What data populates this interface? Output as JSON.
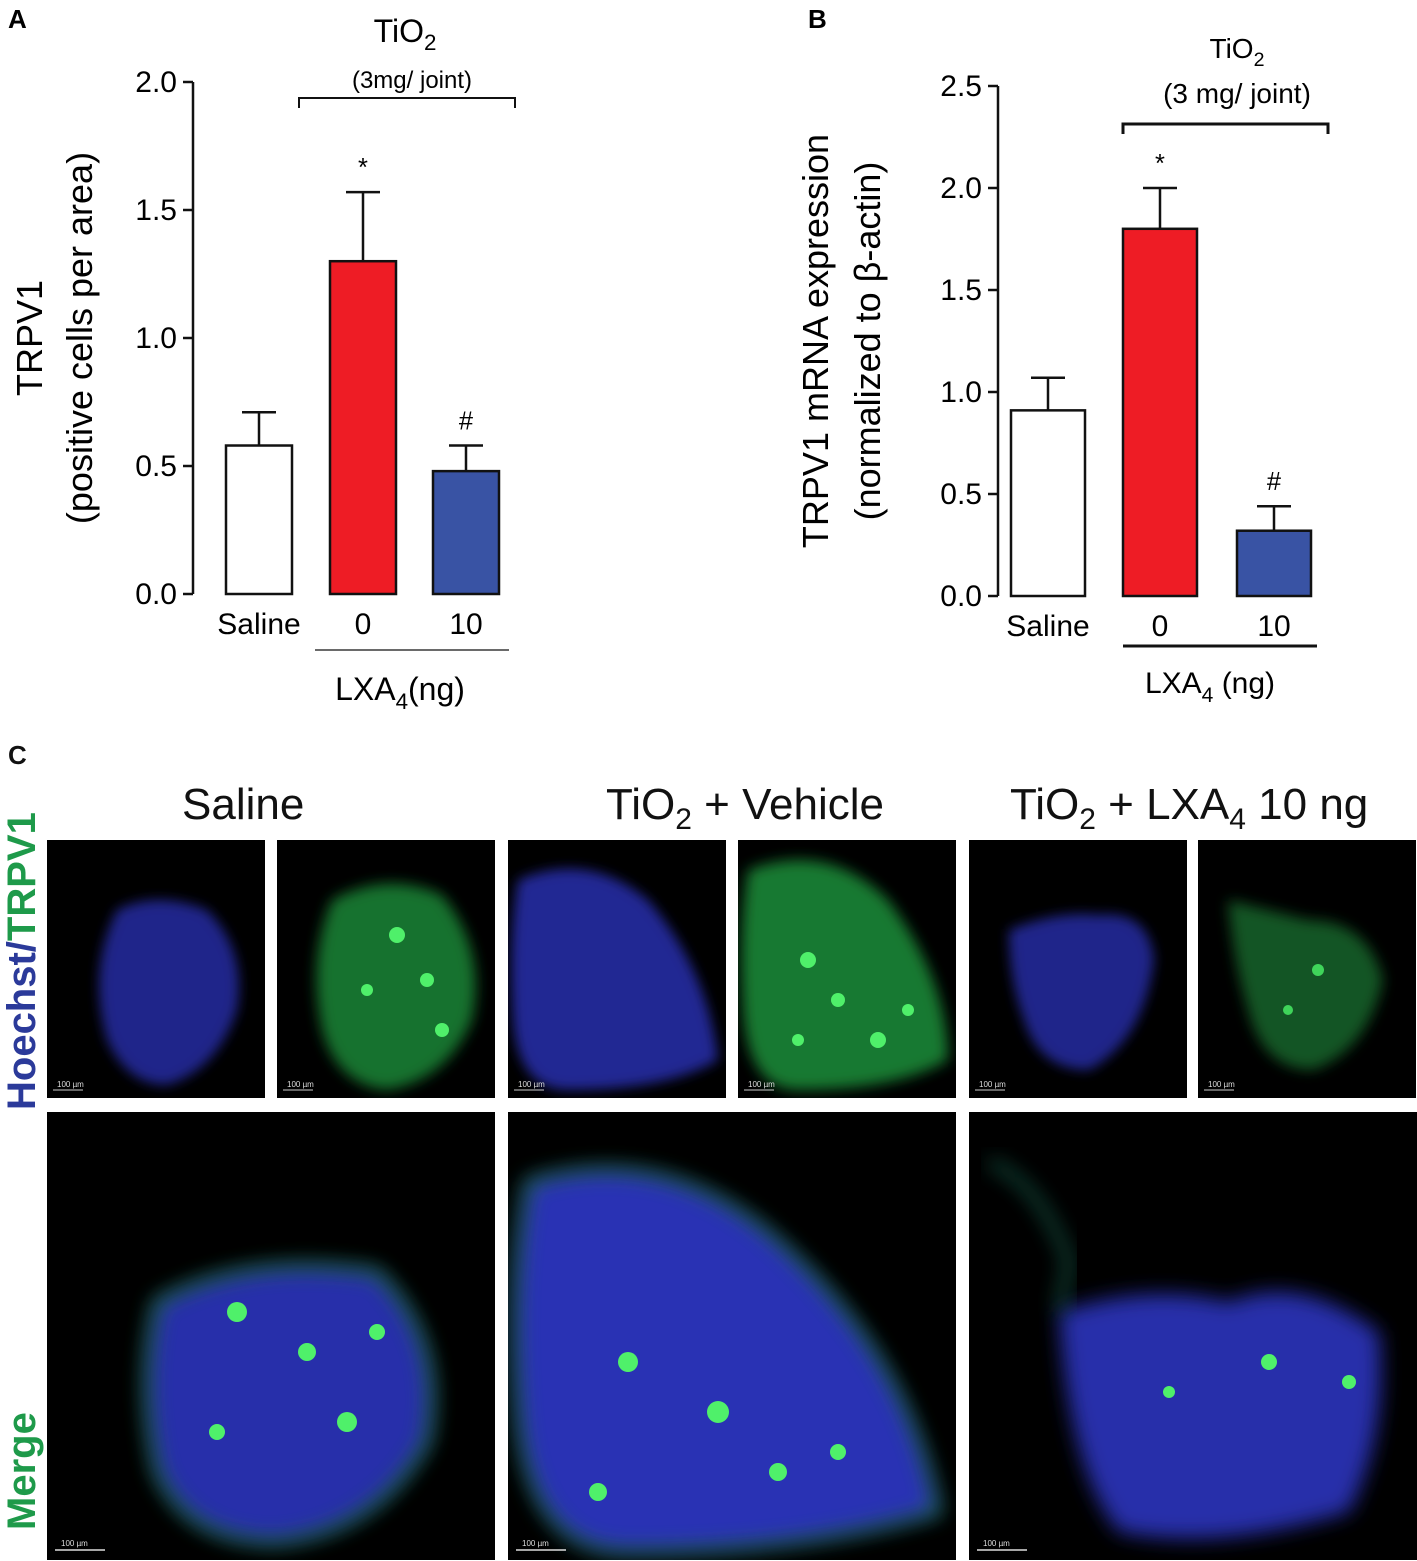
{
  "chart_data": [
    {
      "panel": "A",
      "type": "bar",
      "title": "",
      "ylabel": [
        "TRPV1",
        "(positive cells per area)"
      ],
      "ylim": [
        0,
        2.0
      ],
      "yticks": [
        "0.0",
        "0.5",
        "1.0",
        "1.5",
        "2.0"
      ],
      "categories": [
        "Saline",
        "0",
        "10"
      ],
      "values": [
        0.58,
        1.3,
        0.48
      ],
      "errors": [
        0.13,
        0.27,
        0.1
      ],
      "colors": [
        "#ffffff",
        "#ee1c25",
        "#3953a4"
      ],
      "significance": [
        "",
        "*",
        "#"
      ],
      "bracket_top_label": "TiO",
      "bracket_top_sub": "2",
      "bracket_dose": "(3mg/ joint)",
      "xgroup_label": "LXA",
      "xgroup_sub": "4",
      "xgroup_unit": "(ng)"
    },
    {
      "panel": "B",
      "type": "bar",
      "title": "",
      "ylabel": [
        "TRPV1 mRNA expression",
        "(normalized to β-actin)"
      ],
      "ylim": [
        0,
        2.5
      ],
      "yticks": [
        "0.0",
        "0.5",
        "1.0",
        "1.5",
        "2.0",
        "2.5"
      ],
      "categories": [
        "Saline",
        "0",
        "10"
      ],
      "values": [
        0.91,
        1.8,
        0.32
      ],
      "errors": [
        0.16,
        0.2,
        0.12
      ],
      "colors": [
        "#ffffff",
        "#ee1c25",
        "#3953a4"
      ],
      "significance": [
        "",
        "*",
        "#"
      ],
      "bracket_top_label": "TiO",
      "bracket_top_sub": "2",
      "bracket_dose": "(3 mg/ joint)",
      "xgroup_label": "LXA",
      "xgroup_sub": "4",
      "xgroup_unit": " (ng)"
    }
  ],
  "panel_c": {
    "letter": "C",
    "conditions": [
      {
        "pre": "Saline",
        "sub1": "",
        "mid": "",
        "sub2": "",
        "post": ""
      },
      {
        "pre": "TiO",
        "sub1": "2",
        "mid": " + Vehicle",
        "sub2": "",
        "post": ""
      },
      {
        "pre": "TiO",
        "sub1": "2",
        "mid": " + LXA",
        "sub2": "4",
        "post": " 10 ng"
      }
    ],
    "row_label_top": {
      "part1": "Hoechst/",
      "part2": "TRPV1",
      "color1": "#2b3a9a",
      "color2": "#1e9a4a"
    },
    "row_label_bottom": {
      "text": "Merge",
      "color": "#1e9a4a"
    },
    "scale_bar_small": "100 µm",
    "scale_bar_large": "100 µm"
  }
}
